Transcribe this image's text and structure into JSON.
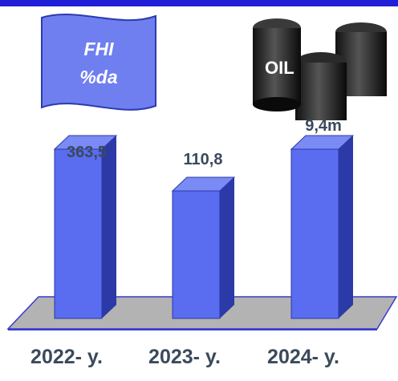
{
  "flag": {
    "line1": "FHI",
    "line2": "%da"
  },
  "image": {
    "barrel_label": "OIL",
    "icon": "oil-barrels-icon"
  },
  "colors": {
    "top_bar": "#1f1fd8",
    "bar_front": "#5a6cf0",
    "bar_side": "#2b3aa6",
    "bar_top": "#7b8bf5",
    "floor": "#b3b3b3",
    "flag": "#6f7ff0"
  },
  "chart_data": {
    "type": "bar",
    "categories": [
      "2022- y.",
      "2023- y.",
      "2024- y."
    ],
    "values": [
      363.5,
      110.8,
      9.4
    ],
    "data_labels": [
      "363,5",
      "110,8",
      "9,4m"
    ],
    "title": "",
    "xlabel": "",
    "ylabel": "",
    "style": "3d",
    "grid": false,
    "legend": "none"
  }
}
